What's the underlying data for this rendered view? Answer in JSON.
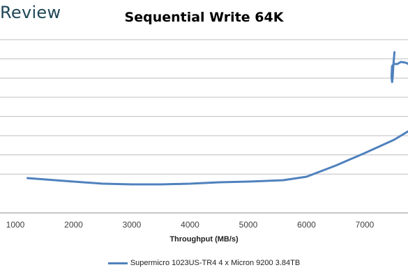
{
  "brand": {
    "text": "Review"
  },
  "chart_data": {
    "type": "line",
    "title": "Sequential Write 64K",
    "xlabel": "Throughput (MB/s)",
    "ylabel": "",
    "xlim": [
      1000,
      7800
    ],
    "x_ticks": [
      1000,
      2000,
      3000,
      4000,
      5000,
      6000,
      7000
    ],
    "gridlines": 8,
    "grid": true,
    "legend": "bottom",
    "series": [
      {
        "name": "Supermicro 1023US-TR4 4 x Micron 9200 3.84TB",
        "color": "#4f81bd",
        "points": [
          [
            1210,
            256
          ],
          [
            2000,
            261
          ],
          [
            2500,
            264
          ],
          [
            3000,
            265
          ],
          [
            3500,
            265
          ],
          [
            4000,
            264
          ],
          [
            4500,
            262
          ],
          [
            5000,
            261
          ],
          [
            5600,
            259
          ],
          [
            6000,
            254
          ],
          [
            6250,
            246
          ],
          [
            6500,
            238
          ],
          [
            7000,
            220
          ],
          [
            7500,
            201
          ],
          [
            7800,
            186
          ]
        ]
      },
      {
        "name": "",
        "color": "#4f81bd",
        "points": [
          [
            7510,
            75
          ],
          [
            7490,
            95
          ],
          [
            7480,
            110
          ],
          [
            7470,
            118
          ],
          [
            7460,
            110
          ],
          [
            7470,
            95
          ],
          [
            7500,
            92
          ],
          [
            7560,
            92
          ],
          [
            7620,
            89
          ],
          [
            7700,
            90
          ],
          [
            7800,
            94
          ]
        ]
      }
    ]
  }
}
